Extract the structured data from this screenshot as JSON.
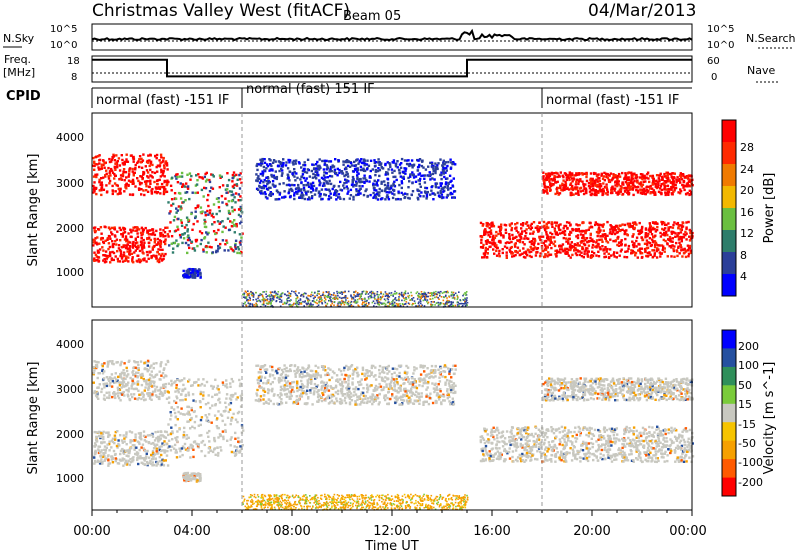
{
  "header": {
    "title": "Christmas Valley West (fitACF)",
    "beam": "Beam 05",
    "date": "04/Mar/2013"
  },
  "nsky_panel": {
    "left_label": "N.Sky",
    "left_ticks": [
      "10^5",
      "10^0"
    ],
    "right_label": "N.Search",
    "right_ticks": [
      "10^5",
      "10^0"
    ]
  },
  "freq_panel": {
    "left_label_1": "Freq.",
    "left_label_2": "[MHz]",
    "left_ticks": [
      "18",
      "8"
    ],
    "right_label": "Nave",
    "right_ticks": [
      "60",
      "0"
    ]
  },
  "cpid": {
    "label": "CPID",
    "segments": [
      {
        "start": 0,
        "end": 6,
        "text": "normal (fast) -151 IF"
      },
      {
        "start": 6,
        "end": 18,
        "text": "normal (fast) 151 IF"
      },
      {
        "start": 18,
        "end": 24,
        "text": "normal (fast) -151 IF"
      }
    ]
  },
  "xaxis": {
    "label": "Time UT",
    "ticks": [
      "00:00",
      "04:00",
      "08:00",
      "12:00",
      "16:00",
      "20:00",
      "00:00"
    ]
  },
  "power_panel": {
    "ylabel": "Slant Range [km]",
    "yticks": [
      "1000",
      "2000",
      "3000",
      "4000"
    ],
    "cbar_label": "Power [dB]",
    "cbar_ticks": [
      "4",
      "8",
      "12",
      "16",
      "20",
      "24",
      "28"
    ],
    "colors": [
      "#0000ff",
      "#2b3f99",
      "#2e7d6b",
      "#6abf40",
      "#f2b800",
      "#f07a00",
      "#ff2a00",
      "#ff0000"
    ]
  },
  "velocity_panel": {
    "ylabel": "Slant Range [km]",
    "yticks": [
      "1000",
      "2000",
      "3000",
      "4000"
    ],
    "cbar_label": "Velocity [m s^-1]",
    "cbar_ticks": [
      "-200",
      "-100",
      "-50",
      "-15",
      "15",
      "50",
      "100",
      "200"
    ],
    "colors": [
      "#ff0000",
      "#ff5a00",
      "#f6a000",
      "#f6c400",
      "#c8c8c0",
      "#7acb3a",
      "#2f8f5a",
      "#2550a0",
      "#0000ff"
    ]
  },
  "chart_data": {
    "type": "heatmap",
    "x_range_hours": [
      0,
      24
    ],
    "y_range_km": [
      180,
      4500
    ],
    "frequency_mhz": {
      "x": [
        0,
        3,
        3,
        15,
        15,
        24
      ],
      "y": [
        18,
        18,
        9,
        9,
        18,
        18
      ]
    },
    "power_bands": [
      {
        "t0": 0,
        "t1": 3,
        "r0": 1200,
        "r1": 2000,
        "level": "strong"
      },
      {
        "t0": 0,
        "t1": 3,
        "r0": 2700,
        "r1": 3600,
        "level": "strong"
      },
      {
        "t0": 3,
        "t1": 6,
        "r0": 1400,
        "r1": 3200,
        "level": "mixed"
      },
      {
        "t0": 3.6,
        "t1": 4.3,
        "r0": 850,
        "r1": 1050,
        "level": "weak"
      },
      {
        "t0": 6.5,
        "t1": 14.5,
        "r0": 2600,
        "r1": 3500,
        "level": "weak"
      },
      {
        "t0": 15.5,
        "t1": 24,
        "r0": 1300,
        "r1": 2100,
        "level": "strong"
      },
      {
        "t0": 18,
        "t1": 24,
        "r0": 2700,
        "r1": 3200,
        "level": "strong"
      }
    ]
  }
}
